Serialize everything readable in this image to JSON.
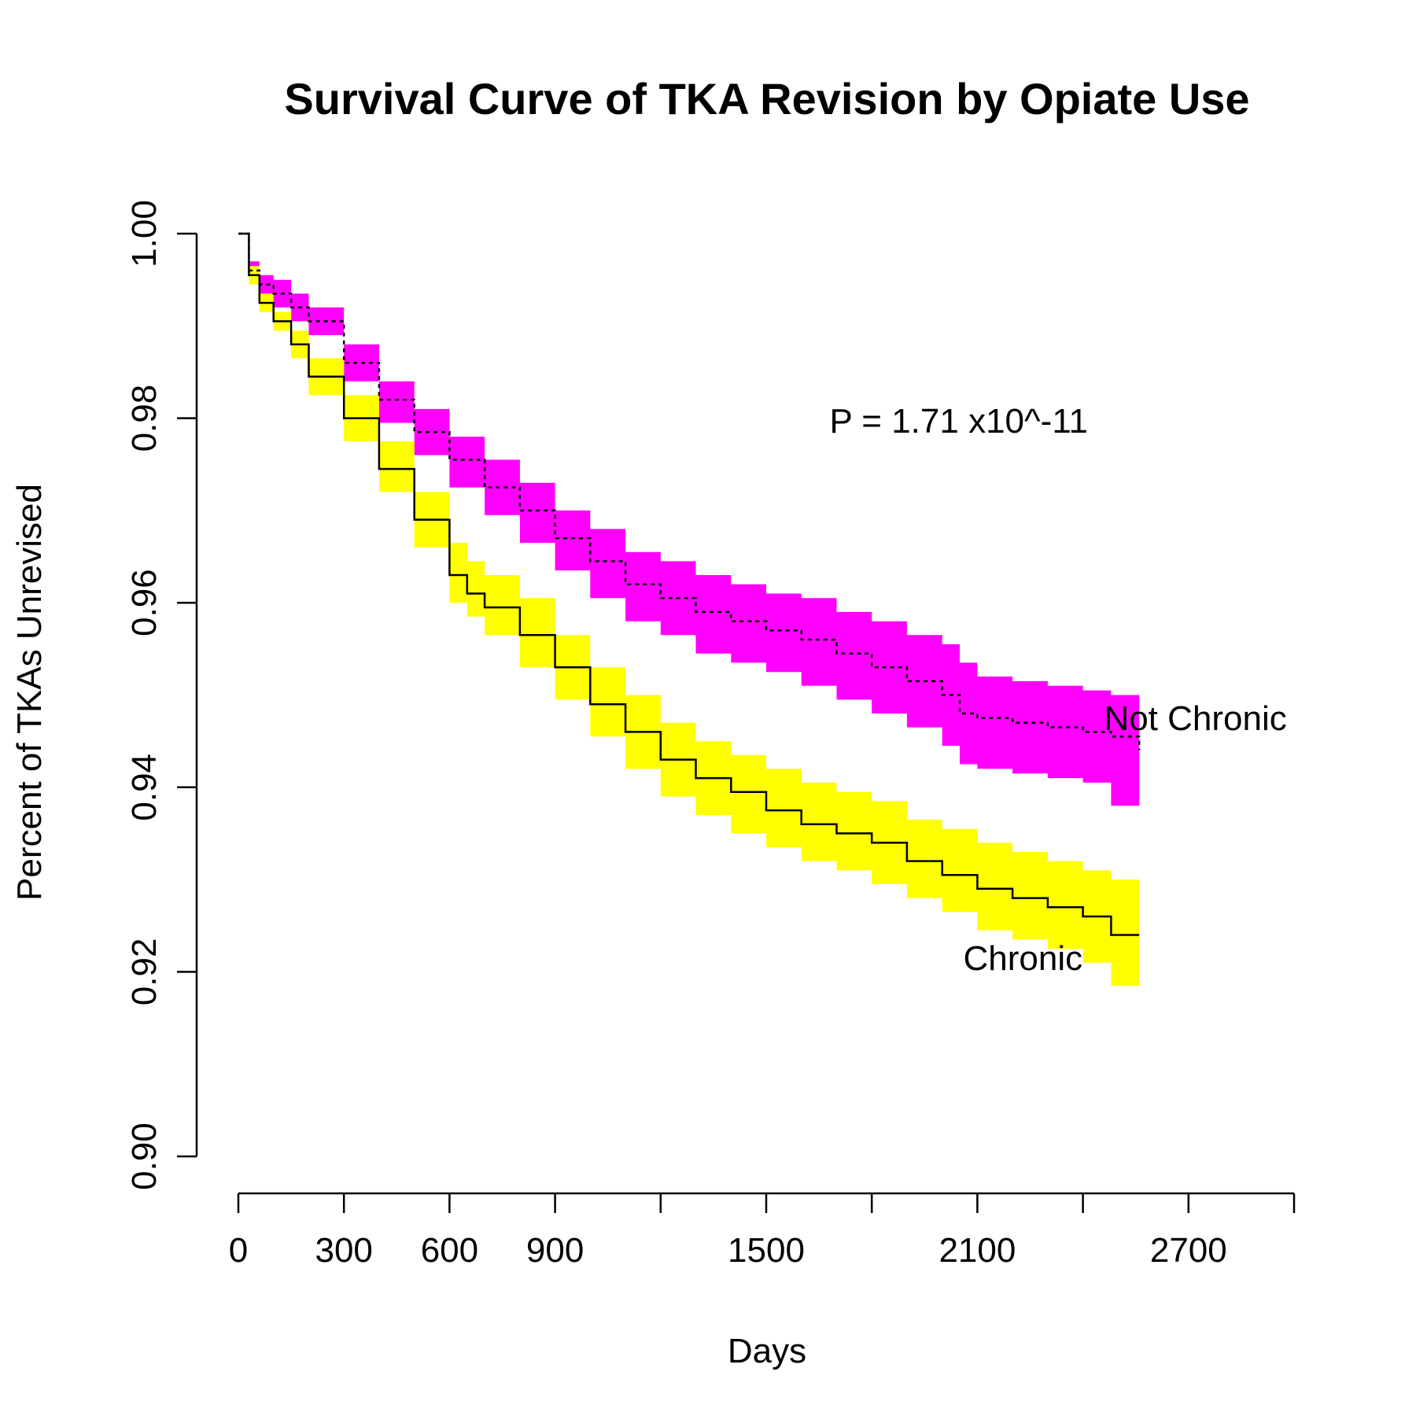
{
  "chart_data": {
    "type": "line",
    "title": "Survival Curve of TKA Revision by Opiate Use",
    "xlabel": "Days",
    "ylabel": "Percent of TKAs Unrevised",
    "xlim": [
      0,
      3000
    ],
    "ylim": [
      0.9,
      1.0
    ],
    "x_ticks": [
      0,
      300,
      600,
      900,
      1200,
      1500,
      1800,
      2100,
      2400,
      2700,
      3000
    ],
    "x_tick_labels": [
      "0",
      "300",
      "600",
      "900",
      "",
      "1500",
      "",
      "2100",
      "",
      "2700",
      ""
    ],
    "y_ticks": [
      0.9,
      0.92,
      0.94,
      0.96,
      0.98,
      1.0
    ],
    "y_tick_labels": [
      "0.90",
      "0.92",
      "0.94",
      "0.96",
      "0.98",
      "1.00"
    ],
    "grid": false,
    "annotations": [
      {
        "text": "P = 1.71 x10^-11",
        "x": 1680,
        "y": 0.9797
      }
    ],
    "series": [
      {
        "name": "Not Chronic",
        "line_style": "dashed",
        "line_color": "#000000",
        "band_color": "#ff00ff",
        "label_at": {
          "x": 2460,
          "y": 0.9475
        },
        "x": [
          0,
          30,
          60,
          100,
          150,
          200,
          300,
          400,
          500,
          600,
          700,
          800,
          900,
          1000,
          1100,
          1200,
          1300,
          1400,
          1500,
          1600,
          1700,
          1800,
          1900,
          2000,
          2050,
          2100,
          2200,
          2300,
          2400,
          2480,
          2560
        ],
        "y": [
          1.0,
          0.996,
          0.9945,
          0.9935,
          0.992,
          0.9905,
          0.986,
          0.982,
          0.9785,
          0.9755,
          0.9725,
          0.97,
          0.967,
          0.9645,
          0.962,
          0.9605,
          0.959,
          0.958,
          0.957,
          0.956,
          0.9545,
          0.953,
          0.9515,
          0.95,
          0.948,
          0.9475,
          0.947,
          0.9465,
          0.946,
          0.9455,
          0.944
        ],
        "lower": [
          1.0,
          0.995,
          0.993,
          0.992,
          0.9905,
          0.989,
          0.984,
          0.9795,
          0.976,
          0.9725,
          0.9695,
          0.9665,
          0.9635,
          0.9605,
          0.958,
          0.9565,
          0.9545,
          0.9535,
          0.9525,
          0.951,
          0.9495,
          0.948,
          0.9465,
          0.9445,
          0.9425,
          0.942,
          0.9415,
          0.941,
          0.9405,
          0.938,
          0.938
        ],
        "upper": [
          1.0,
          0.997,
          0.9955,
          0.995,
          0.9935,
          0.992,
          0.988,
          0.984,
          0.981,
          0.978,
          0.9755,
          0.973,
          0.97,
          0.968,
          0.9655,
          0.9645,
          0.963,
          0.962,
          0.961,
          0.9605,
          0.959,
          0.958,
          0.9565,
          0.9555,
          0.9535,
          0.952,
          0.9515,
          0.951,
          0.9505,
          0.95,
          0.95
        ]
      },
      {
        "name": "Chronic",
        "line_style": "solid",
        "line_color": "#000000",
        "band_color": "#ffff00",
        "label_at": {
          "x": 2060,
          "y": 0.9215
        },
        "x": [
          0,
          30,
          60,
          100,
          150,
          200,
          300,
          400,
          500,
          600,
          650,
          700,
          800,
          900,
          1000,
          1100,
          1200,
          1300,
          1400,
          1500,
          1600,
          1700,
          1800,
          1900,
          2000,
          2100,
          2200,
          2300,
          2400,
          2480,
          2560
        ],
        "y": [
          1.0,
          0.9955,
          0.9925,
          0.9905,
          0.988,
          0.9845,
          0.98,
          0.9745,
          0.969,
          0.963,
          0.961,
          0.9595,
          0.9565,
          0.953,
          0.949,
          0.946,
          0.943,
          0.941,
          0.9395,
          0.9375,
          0.936,
          0.935,
          0.934,
          0.932,
          0.9305,
          0.929,
          0.928,
          0.927,
          0.926,
          0.924,
          0.924
        ],
        "lower": [
          1.0,
          0.9945,
          0.9915,
          0.9895,
          0.9865,
          0.9825,
          0.9775,
          0.972,
          0.966,
          0.96,
          0.9585,
          0.9565,
          0.953,
          0.9495,
          0.9455,
          0.942,
          0.939,
          0.937,
          0.935,
          0.9335,
          0.932,
          0.931,
          0.9295,
          0.928,
          0.9265,
          0.9245,
          0.9235,
          0.9225,
          0.921,
          0.9185,
          0.9185
        ],
        "upper": [
          1.0,
          0.9965,
          0.9935,
          0.9915,
          0.9895,
          0.9865,
          0.9825,
          0.9775,
          0.972,
          0.9665,
          0.9645,
          0.963,
          0.9605,
          0.9565,
          0.953,
          0.95,
          0.947,
          0.945,
          0.9435,
          0.942,
          0.9405,
          0.9395,
          0.9385,
          0.9365,
          0.9355,
          0.934,
          0.933,
          0.932,
          0.931,
          0.93,
          0.93
        ]
      }
    ]
  }
}
